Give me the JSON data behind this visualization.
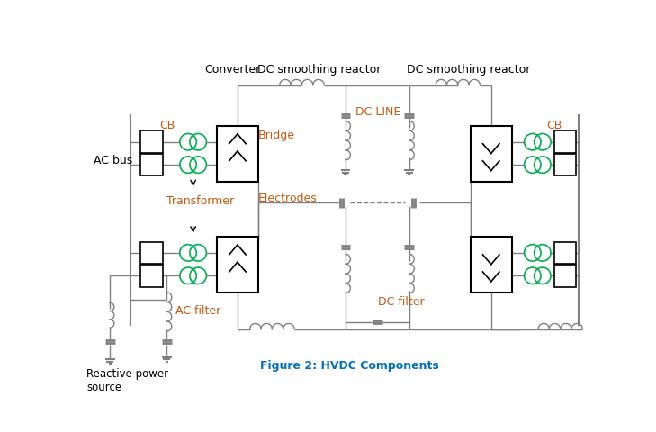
{
  "title": "Figure 2: HVDC Components",
  "title_color": "#0070C0",
  "line_color": "#808080",
  "green_color": "#00B050",
  "orange_color": "#C55A11",
  "bg_color": "#FFFFFF",
  "labels": {
    "converter": "Converter",
    "dc_smoothing1": "DC smoothing reactor",
    "dc_smoothing2": "DC smoothing reactor",
    "cb_left": "CB",
    "cb_right": "CB",
    "ac_bus": "AC bus",
    "bridge": "Bridge",
    "electrodes": "Electrodes",
    "transformer": "Transformer",
    "dc_line": "DC LINE",
    "ac_filter": "AC filter",
    "dc_filter": "DC filter",
    "reactive_power": "Reactive power\nsource",
    "figure": "Figure 2: HVDC Components"
  }
}
